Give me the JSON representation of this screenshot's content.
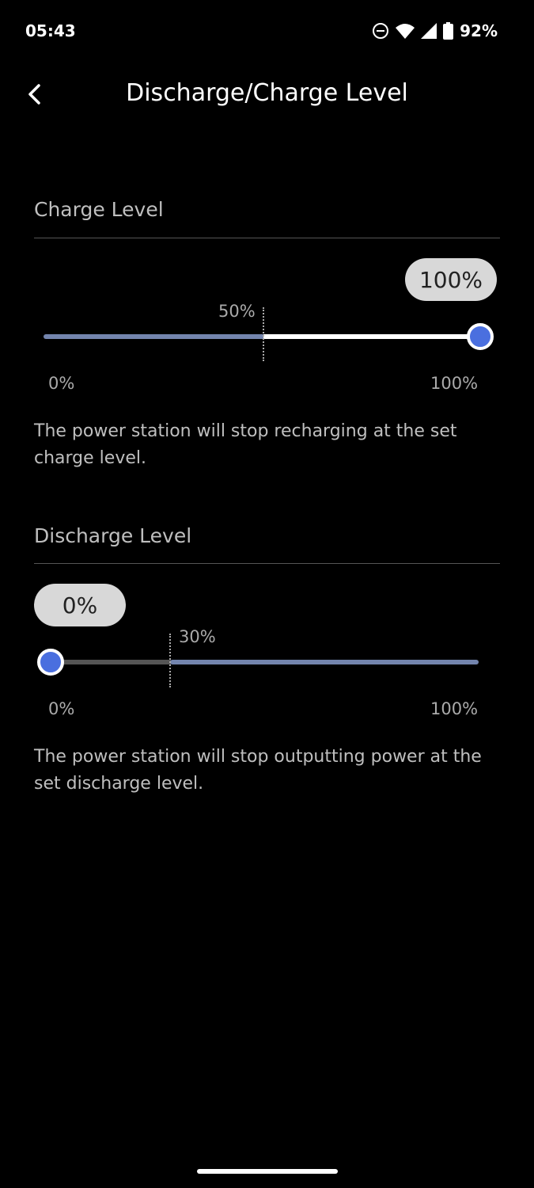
{
  "status_bar": {
    "time": "05:43",
    "battery": "92%"
  },
  "header": {
    "title": "Discharge/Charge Level"
  },
  "charge": {
    "title": "Charge Level",
    "value": "100%",
    "value_percent": 100,
    "marker_label": "50%",
    "marker_percent": 50,
    "min_label": "0%",
    "max_label": "100%",
    "description": "The power station will stop recharging at the set charge level."
  },
  "discharge": {
    "title": "Discharge Level",
    "value": "0%",
    "value_percent": 0,
    "marker_label": "30%",
    "marker_percent": 30,
    "min_label": "0%",
    "max_label": "100%",
    "description": "The power station will stop outputting power at the set discharge level."
  },
  "colors": {
    "accent": "#4a6fdf",
    "track_fill": "#7384ad"
  }
}
